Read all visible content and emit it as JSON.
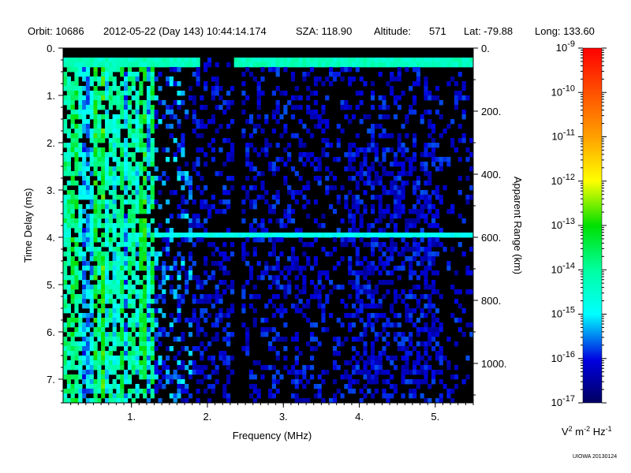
{
  "header": {
    "orbit": "Orbit: 10686",
    "datetime": "2012-05-22 (Day 143) 10:44:14.174",
    "sza": "SZA: 118.90",
    "altitude_label": "Altitude:",
    "altitude_value": "571",
    "lat": "Lat: -79.88",
    "long": "Long: 133.60"
  },
  "credit": "UIOWA 20130124",
  "chart_data": {
    "type": "heatmap",
    "title": "",
    "xlabel": "Frequency (MHz)",
    "ylabel": "Time Delay (ms)",
    "y2label": "Apparent Range (km)",
    "xlim": [
      0.1,
      5.5
    ],
    "ylim": [
      7.5,
      0
    ],
    "y2lim": [
      1125,
      0
    ],
    "x_ticks": [
      "1.",
      "2.",
      "3.",
      "4.",
      "5."
    ],
    "x_tick_values": [
      1,
      2,
      3,
      4,
      5
    ],
    "y_ticks": [
      "0.",
      "1.",
      "2.",
      "3.",
      "4.",
      "5.",
      "6.",
      "7."
    ],
    "y_tick_values": [
      0,
      1,
      2,
      3,
      4,
      5,
      6,
      7
    ],
    "y2_ticks": [
      "0.",
      "200.",
      "400.",
      "600.",
      "800.",
      "1000."
    ],
    "y2_tick_values": [
      0,
      200,
      400,
      600,
      800,
      1000
    ],
    "colorbar": {
      "label_parts": [
        "V",
        "2",
        " m",
        "-2",
        " Hz",
        "-1"
      ],
      "scale": "log",
      "range_exponent": [
        -17,
        -9
      ],
      "tick_exponents": [
        "-9",
        "-10",
        "-11",
        "-12",
        "-13",
        "-14",
        "-15",
        "-16",
        "-17"
      ],
      "tick_base": "10"
    },
    "features": {
      "local_plasma_noise_band_mhz": [
        0.1,
        1.3
      ],
      "surface_echo_line_ms": 0.3,
      "ionospheric_echo_line_ms": 3.9,
      "ionospheric_echo_start_mhz": 1.25,
      "noise_floor_log10": -16.2,
      "dead_band_mhz": [
        2.32,
        2.42
      ]
    }
  }
}
